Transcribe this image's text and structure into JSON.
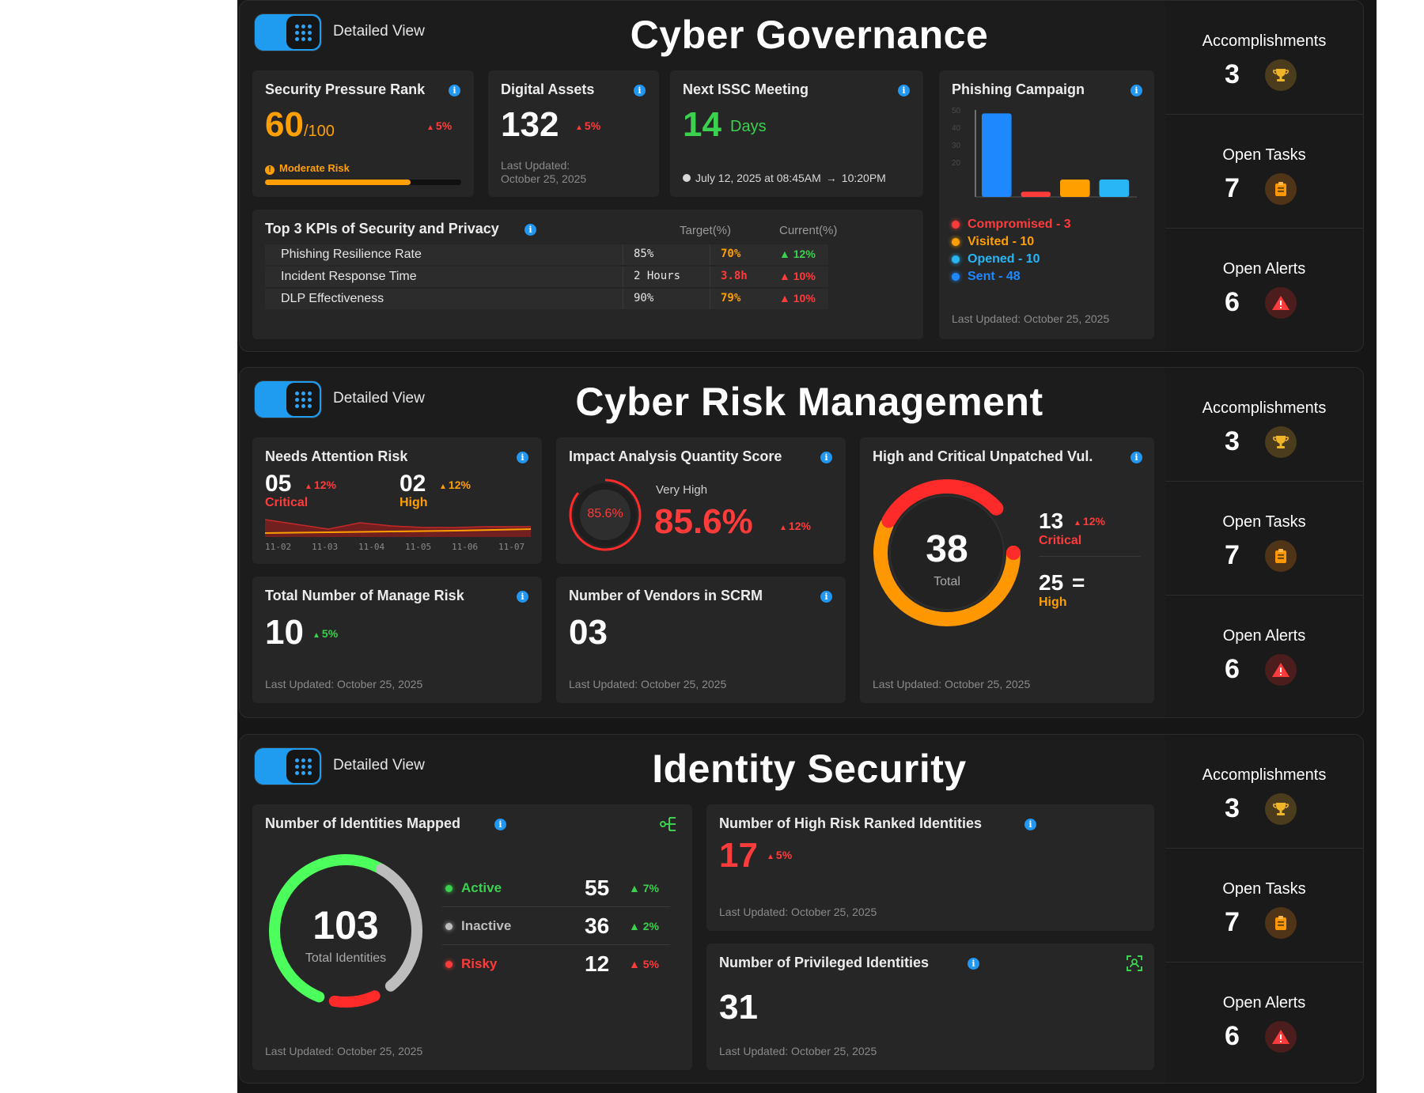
{
  "sections": [
    {
      "title": "Cyber Governance",
      "toggle_label": "Detailed View",
      "security_pressure": {
        "title": "Security Pressure Rank",
        "value": "60",
        "max": "/100",
        "change": "5%",
        "risk_label": "Moderate Risk",
        "progress": 0.74
      },
      "digital_assets": {
        "title": "Digital Assets",
        "value": "132",
        "change": "5%",
        "updated_label": "Last Updated:",
        "updated_date": "October 25, 2025"
      },
      "issc": {
        "title": "Next ISSC Meeting",
        "value": "14",
        "unit": "Days",
        "date": "July 12, 2025 at 08:45AM",
        "end": "10:20PM"
      },
      "phishing": {
        "title": "Phishing Campaign",
        "updated": "Last Updated: October 25, 2025",
        "legend": [
          {
            "label": "Compromised -  3",
            "color": "#ff3b3b"
          },
          {
            "label": "Visited - 10",
            "color": "#ffa000"
          },
          {
            "label": "Opened - 10",
            "color": "#29b6f6"
          },
          {
            "label": "Sent - 48",
            "color": "#1e88ff"
          }
        ]
      },
      "kpis": {
        "title": "Top 3 KPIs of Security and Privacy",
        "col_target": "Target(%)",
        "col_current": "Current(%)",
        "rows": [
          {
            "name": "Phishing Resilience Rate",
            "target": "85%",
            "current": "70%",
            "change": "12%",
            "current_color": "#ffa000",
            "change_color": "#3bd14e"
          },
          {
            "name": "Incident Response Time",
            "target": "2 Hours",
            "current": "3.8h",
            "change": "10%",
            "current_color": "#ff3b3b",
            "change_color": "#ff3b3b"
          },
          {
            "name": "DLP Effectiveness",
            "target": "90%",
            "current": "79%",
            "change": "10%",
            "current_color": "#ffa000",
            "change_color": "#ff3b3b"
          }
        ]
      }
    },
    {
      "title": "Cyber Risk Management",
      "toggle_label": "Detailed View",
      "needs_attention": {
        "title": "Needs Attention Risk",
        "critical_value": "05",
        "critical_change": "12%",
        "critical_label": "Critical",
        "high_value": "02",
        "high_change": "12%",
        "high_label": "High",
        "dates": [
          "11-02",
          "11-03",
          "11-04",
          "11-05",
          "11-06",
          "11-07"
        ]
      },
      "impact": {
        "title": "Impact Analysis Quantity Score",
        "ring_value": "85.6%",
        "level": "Very High",
        "value": "85.6%",
        "change": "12%"
      },
      "unpatched": {
        "title": "High and Critical Unpatched Vul.",
        "total": "38",
        "total_label": "Total",
        "critical_value": "13",
        "critical_change": "12%",
        "critical_label": "Critical",
        "high_value": "25",
        "high_change": "=",
        "high_label": "High",
        "updated": "Last Updated: October 25, 2025"
      },
      "manage_risk": {
        "title": "Total Number of Manage Risk",
        "value": "10",
        "change": "5%",
        "updated": "Last Updated: October 25, 2025"
      },
      "vendors": {
        "title": "Number of Vendors in SCRM",
        "value": "03",
        "updated": "Last Updated: October 25, 2025"
      }
    },
    {
      "title": "Identity Security",
      "toggle_label": "Detailed View",
      "identities": {
        "title": "Number of Identities Mapped",
        "total": "103",
        "total_label": "Total Identities",
        "updated": "Last Updated: October 25, 2025",
        "rows": [
          {
            "label": "Active",
            "value": "55",
            "change": "7%",
            "color": "#3bd14e"
          },
          {
            "label": "Inactive",
            "value": "36",
            "change": "2%",
            "color": "#bdbdbd"
          },
          {
            "label": "Risky",
            "value": "12",
            "change": "5%",
            "color": "#ff3b3b"
          }
        ]
      },
      "high_risk": {
        "title": "Number of High Risk Ranked Identities",
        "value": "17",
        "change": "5%",
        "updated": "Last Updated: October 25, 2025"
      },
      "privileged": {
        "title": "Number of Privileged Identities",
        "value": "31",
        "updated": "Last Updated: October 25, 2025"
      }
    }
  ],
  "side": {
    "accomplishments_label": "Accomplishments",
    "accomplishments_value": "3",
    "tasks_label": "Open Tasks",
    "tasks_value": "7",
    "alerts_label": "Open Alerts",
    "alerts_value": "6"
  },
  "chart_data": {
    "type": "bar",
    "categories": [
      "Sent",
      "Compromised",
      "Visited",
      "Opened"
    ],
    "values": [
      48,
      3,
      10,
      10
    ],
    "ylim": [
      0,
      50
    ],
    "yticks": [
      "50",
      "40",
      "30",
      "20"
    ],
    "colors": [
      "#1e88ff",
      "#ff3b3b",
      "#ffa000",
      "#29b6f6"
    ]
  },
  "icons": {
    "toggle": "grid-icon",
    "trophy": "trophy-icon",
    "clipboard": "clipboard-icon",
    "alert": "alert-icon",
    "info": "info-icon",
    "hierarchy": "hierarchy-icon",
    "scan": "scan-icon"
  }
}
